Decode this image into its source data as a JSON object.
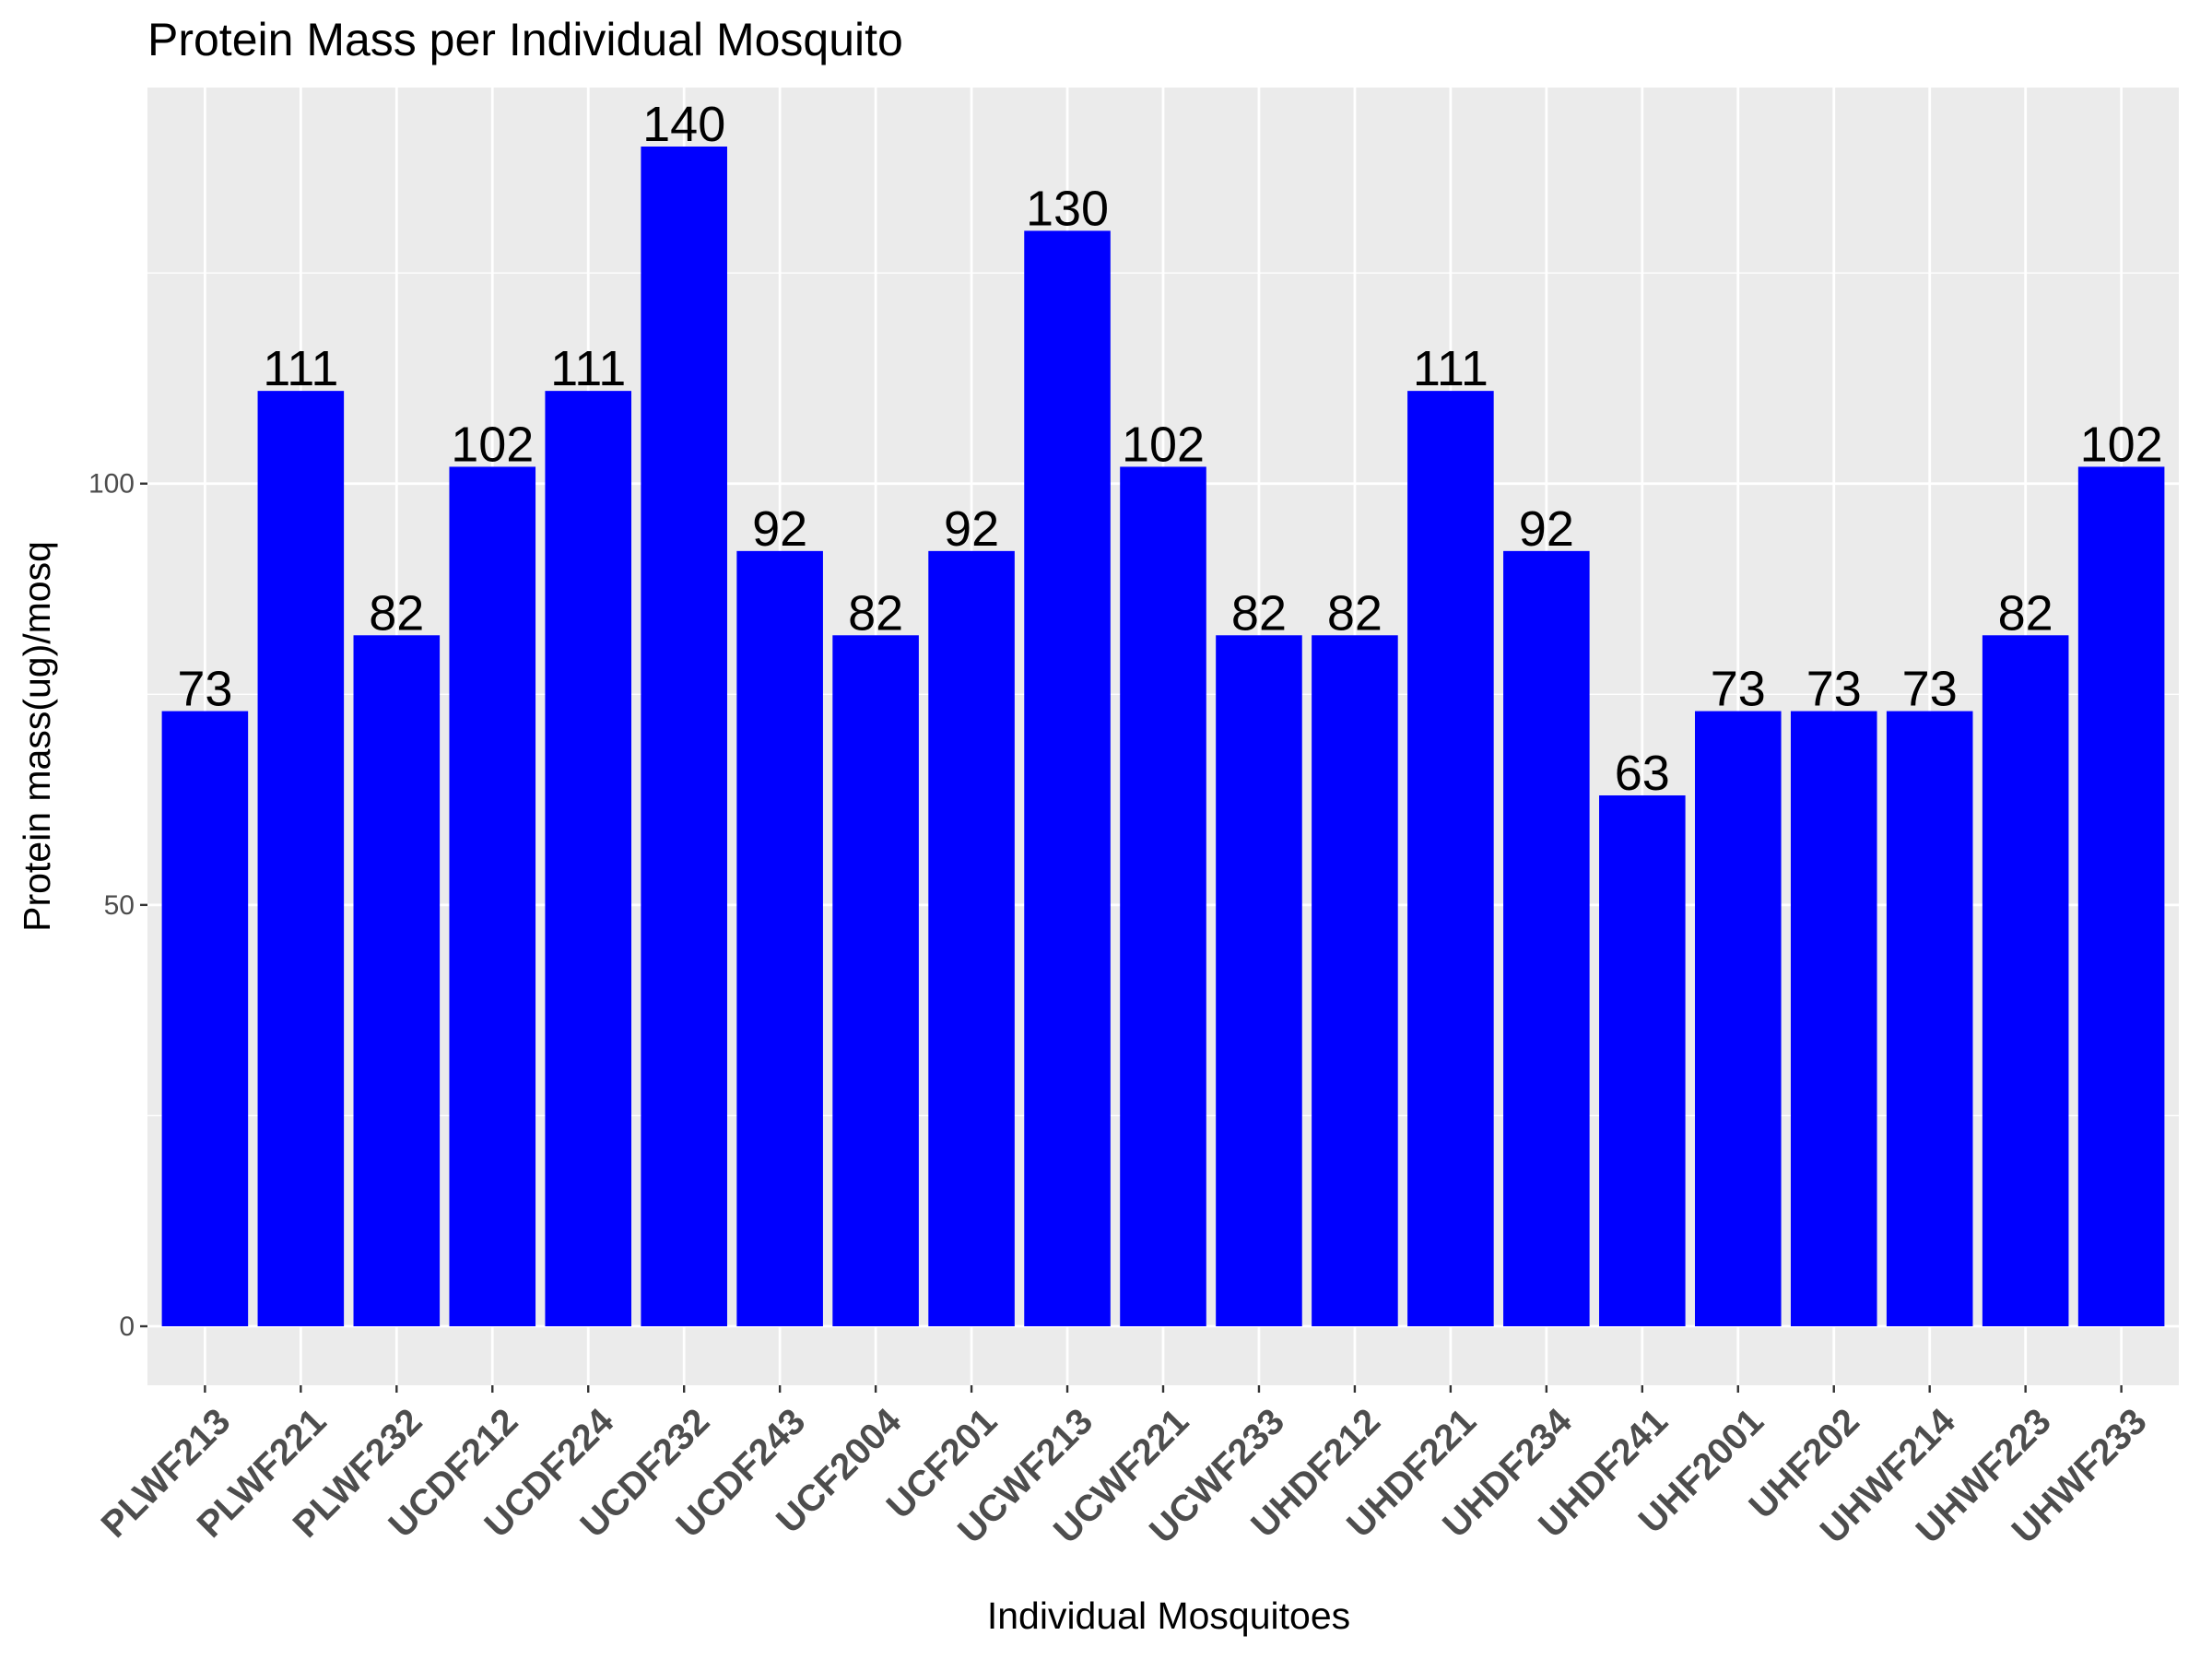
{
  "chart_data": {
    "type": "bar",
    "title": "Protein Mass per Individual Mosquito",
    "xlabel": "Individual Mosquitoes",
    "ylabel": "Protein mass(ug)/mosq",
    "categories": [
      "PLWF213",
      "PLWF221",
      "PLWF232",
      "UCDF212",
      "UCDF224",
      "UCDF232",
      "UCDF243",
      "UCF2004",
      "UCF201",
      "UCWF213",
      "UCWF221",
      "UCWF233",
      "UHDF212",
      "UHDF221",
      "UHDF234",
      "UHDF241",
      "UHF2001",
      "UHF202",
      "UHWF214",
      "UHWF223",
      "UHWF233"
    ],
    "values": [
      73,
      111,
      82,
      102,
      111,
      140,
      92,
      82,
      92,
      130,
      102,
      82,
      82,
      111,
      92,
      63,
      73,
      73,
      73,
      82,
      102
    ],
    "data_labels": [
      "73",
      "111",
      "82",
      "102",
      "111",
      "140",
      "92",
      "82",
      "92",
      "130",
      "102",
      "82",
      "82",
      "111",
      "92",
      "63",
      "73",
      "73",
      "73",
      "82",
      "102"
    ],
    "yticks": [
      0,
      50,
      100
    ],
    "ytick_labels": [
      "0",
      "50",
      "100"
    ],
    "ylim": [
      -7,
      147
    ],
    "grid": true,
    "legend": "none",
    "bar_color": "#0000ff",
    "panel_color": "#ebebeb",
    "grid_color": "#ffffff"
  }
}
